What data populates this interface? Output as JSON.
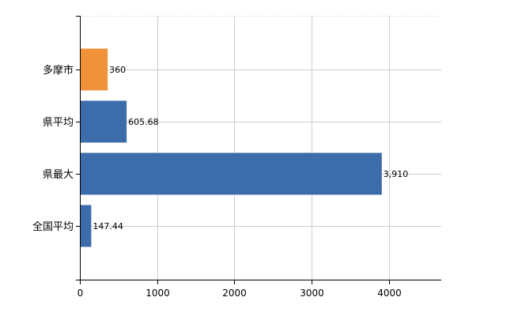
{
  "chart_data": {
    "type": "bar",
    "orientation": "horizontal",
    "categories": [
      "多摩市",
      "県平均",
      "県最大",
      "全国平均"
    ],
    "values": [
      360,
      605.68,
      3910,
      147.44
    ],
    "value_labels": [
      "360",
      "605.68",
      "3,910",
      "147.44"
    ],
    "bar_colors": [
      "#F0923A",
      "#3D6CAA",
      "#3D6CAA",
      "#3D6CAA"
    ],
    "xlim": [
      0,
      4680
    ],
    "x_ticks": [
      0,
      1000,
      2000,
      3000,
      4000
    ],
    "x_tick_labels": [
      "0",
      "1000",
      "2000",
      "3000",
      "4000"
    ],
    "grid": true,
    "title": "",
    "xlabel": "",
    "ylabel": ""
  }
}
